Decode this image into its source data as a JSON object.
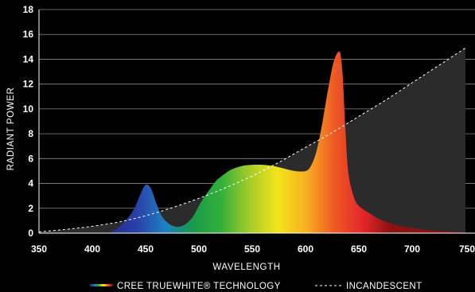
{
  "chart_data": {
    "type": "area",
    "xlabel": "WAVELENGTH",
    "ylabel": "RADIANT POWER",
    "xlim": [
      350,
      750
    ],
    "ylim": [
      0,
      18
    ],
    "xticks": [
      350,
      400,
      450,
      500,
      550,
      600,
      650,
      700,
      750
    ],
    "yticks": [
      0,
      2,
      4,
      6,
      8,
      10,
      12,
      14,
      16,
      18
    ],
    "grid": "horizontal",
    "legend_placement": "bottom",
    "series": [
      {
        "name": "CREE TRUEWHITE® TECHNOLOGY",
        "style": "spectrum-filled",
        "x": [
          415,
          425,
          435,
          440,
          445,
          450,
          455,
          460,
          465,
          470,
          475,
          480,
          485,
          490,
          495,
          500,
          505,
          510,
          515,
          520,
          530,
          540,
          550,
          560,
          570,
          580,
          590,
          600,
          605,
          610,
          615,
          620,
          625,
          628,
          631,
          633,
          635,
          637,
          640,
          645,
          650,
          660,
          670,
          680,
          690,
          700,
          720,
          740,
          750
        ],
        "y": [
          0,
          0.5,
          1.4,
          2.1,
          3.1,
          3.9,
          3.6,
          2.4,
          1.4,
          0.9,
          0.6,
          0.5,
          0.6,
          0.9,
          1.4,
          2.2,
          2.9,
          3.5,
          4.1,
          4.5,
          5.1,
          5.4,
          5.5,
          5.5,
          5.4,
          5.2,
          5.0,
          5.0,
          5.4,
          6.5,
          8.5,
          11.0,
          13.3,
          14.2,
          14.6,
          14.3,
          12.5,
          9.0,
          5.0,
          3.0,
          2.2,
          1.6,
          1.1,
          0.8,
          0.55,
          0.4,
          0.2,
          0.1,
          0.05
        ]
      },
      {
        "name": "INCANDESCENT",
        "style": "dashed-filled",
        "x": [
          350,
          375,
          400,
          425,
          450,
          475,
          500,
          525,
          550,
          575,
          600,
          625,
          650,
          675,
          700,
          725,
          750
        ],
        "y": [
          0.1,
          0.3,
          0.55,
          0.9,
          1.4,
          2.05,
          2.8,
          3.65,
          4.6,
          5.7,
          6.9,
          8.1,
          9.4,
          10.7,
          12.1,
          13.5,
          14.9
        ]
      }
    ]
  },
  "colors": {
    "background": "#000000",
    "incandescent_fill": "#2b2b2b",
    "incandescent_line": "#ffffff",
    "gridline": "#8a8a8a",
    "spectrum_stops": [
      "#242c8a",
      "#2a3fa8",
      "#1e7fc0",
      "#1a9a4a",
      "#33b03a",
      "#a6cc2a",
      "#f2e51a",
      "#f7b021",
      "#ee5a24",
      "#e6262b",
      "#8a1210"
    ]
  }
}
